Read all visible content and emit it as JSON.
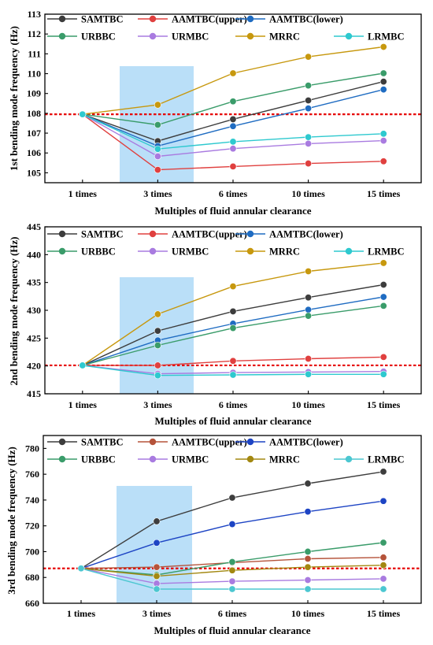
{
  "chart_data": [
    {
      "type": "line",
      "categories": [
        "1 times",
        "3 times",
        "6 times",
        "10 times",
        "15 times"
      ],
      "xlabel": "Multiples of fluid annular clearance",
      "ylabel": "1st bending mode frequency (Hz)",
      "ylim": [
        104.5,
        113
      ],
      "yticks": [
        105,
        106,
        107,
        108,
        109,
        110,
        111,
        112,
        113
      ],
      "reference_line": 107.95,
      "highlight_category": "3 times",
      "grid": false,
      "legend_position": "top",
      "series": [
        {
          "name": "SAMTBC",
          "color": "#3d3d3d",
          "values": [
            107.95,
            106.6,
            107.7,
            108.65,
            109.6
          ]
        },
        {
          "name": "AAMTBC(upper)",
          "color": "#e0403f",
          "values": [
            107.95,
            105.15,
            105.32,
            105.47,
            105.58
          ]
        },
        {
          "name": "AAMTBC(lower)",
          "color": "#1f6cc2",
          "values": [
            107.95,
            106.35,
            107.35,
            108.25,
            109.2
          ]
        },
        {
          "name": "URBBC",
          "color": "#3a9c6a",
          "values": [
            107.95,
            107.42,
            108.6,
            109.4,
            110.02
          ]
        },
        {
          "name": "URMBC",
          "color": "#a97be0",
          "values": [
            107.95,
            105.83,
            106.22,
            106.47,
            106.62
          ]
        },
        {
          "name": "MRRC",
          "color": "#c7980e",
          "values": [
            107.95,
            108.43,
            110.02,
            110.85,
            111.35
          ]
        },
        {
          "name": "LRMBC",
          "color": "#2ec9cf",
          "values": [
            107.95,
            106.2,
            106.57,
            106.8,
            106.97
          ]
        }
      ]
    },
    {
      "type": "line",
      "categories": [
        "1 times",
        "3 times",
        "6 times",
        "10 times",
        "15 times"
      ],
      "xlabel": "Multiples of fluid annular clearance",
      "ylabel": "2nd bending mode frequency (Hz)",
      "ylim": [
        415,
        445
      ],
      "yticks": [
        415,
        420,
        425,
        430,
        435,
        440,
        445
      ],
      "reference_line": 420.1,
      "highlight_category": "3 times",
      "grid": false,
      "legend_position": "top",
      "series": [
        {
          "name": "SAMTBC",
          "color": "#3d3d3d",
          "values": [
            420.1,
            426.3,
            429.8,
            432.3,
            434.6
          ]
        },
        {
          "name": "AAMTBC(upper)",
          "color": "#e0403f",
          "values": [
            420.1,
            420.1,
            420.9,
            421.3,
            421.6
          ]
        },
        {
          "name": "AAMTBC(lower)",
          "color": "#1f6cc2",
          "values": [
            420.1,
            424.6,
            427.6,
            430.1,
            432.4
          ]
        },
        {
          "name": "URBBC",
          "color": "#3a9c6a",
          "values": [
            420.1,
            423.7,
            426.8,
            429.0,
            430.8
          ]
        },
        {
          "name": "URMBC",
          "color": "#a97be0",
          "values": [
            420.1,
            418.6,
            418.8,
            418.9,
            419.0
          ]
        },
        {
          "name": "MRRC",
          "color": "#c7980e",
          "values": [
            420.1,
            429.3,
            434.3,
            437.0,
            438.5
          ]
        },
        {
          "name": "LRMBC",
          "color": "#2ec9cf",
          "values": [
            420.1,
            418.3,
            418.4,
            418.5,
            418.5
          ]
        }
      ]
    },
    {
      "type": "line",
      "categories": [
        "1 times",
        "3 times",
        "6 times",
        "10 times",
        "15 times"
      ],
      "xlabel": "Multiples of fluid annular clearance",
      "ylabel": "3rd bending mode frequency (Hz)",
      "ylim": [
        660,
        790
      ],
      "yticks": [
        660,
        680,
        700,
        720,
        740,
        760,
        780
      ],
      "reference_line": 687,
      "highlight_category": "3 times",
      "grid": false,
      "legend_position": "top",
      "series": [
        {
          "name": "SAMTBC",
          "color": "#3d3d3d",
          "values": [
            687,
            723.5,
            741.8,
            752.8,
            762
          ]
        },
        {
          "name": "AAMTBC(upper)",
          "color": "#b5533a",
          "values": [
            687,
            688,
            691.5,
            694.5,
            695.5
          ]
        },
        {
          "name": "AAMTBC(lower)",
          "color": "#1d44c4",
          "values": [
            687,
            706.8,
            721.3,
            731,
            739.2
          ]
        },
        {
          "name": "URBBC",
          "color": "#3a9c6a",
          "values": [
            687,
            682,
            692,
            700,
            707
          ]
        },
        {
          "name": "URMBC",
          "color": "#a97be0",
          "values": [
            687,
            675.3,
            677,
            678,
            679
          ]
        },
        {
          "name": "MRRC",
          "color": "#a38811",
          "values": [
            687,
            681,
            685.5,
            688,
            689.5
          ]
        },
        {
          "name": "LRMBC",
          "color": "#4cc7d1",
          "values": [
            687,
            671,
            671,
            671,
            671
          ]
        }
      ]
    }
  ]
}
